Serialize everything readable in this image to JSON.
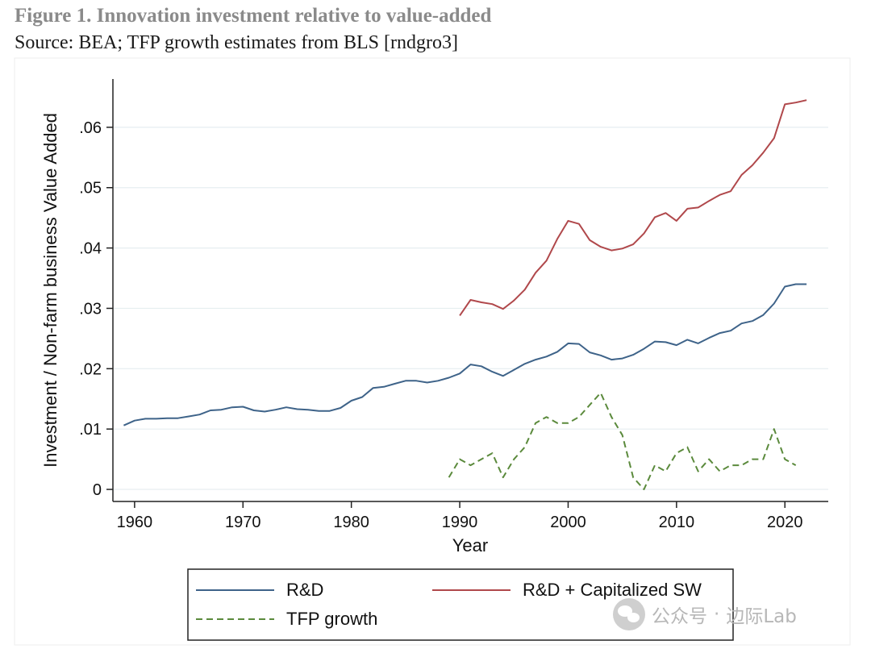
{
  "figure": {
    "title": "Figure 1. Innovation investment relative to value-added",
    "source": "Source: BEA; TFP growth estimates from BLS [rndgro3]"
  },
  "watermark": {
    "left": "公众号",
    "sep": "·",
    "right": "边际Lab",
    "icon": "wechat-icon"
  },
  "chart_data": {
    "type": "line",
    "title": "",
    "xlabel": "Year",
    "ylabel": "Investment / Non-farm business Value Added",
    "xlim": [
      1958,
      2024
    ],
    "ylim": [
      -0.002,
      0.068
    ],
    "xticks": [
      1960,
      1970,
      1980,
      1990,
      2000,
      2010,
      2020
    ],
    "xtick_labels": [
      "1960",
      "1970",
      "1980",
      "1990",
      "2000",
      "2010",
      "2020"
    ],
    "yticks": [
      0,
      0.01,
      0.02,
      0.03,
      0.04,
      0.05,
      0.06
    ],
    "ytick_labels": [
      "0",
      ".01",
      ".02",
      ".03",
      ".04",
      ".05",
      ".06"
    ],
    "grid": true,
    "legend_position": "bottom",
    "colors": {
      "rd": "#3e6389",
      "rdsw": "#b0484b",
      "tfp": "#5b8a3c",
      "grid": "#e6eef0"
    },
    "series": [
      {
        "key": "rd",
        "name": "R&D",
        "style": "solid",
        "x": [
          1959,
          1960,
          1961,
          1962,
          1963,
          1964,
          1965,
          1966,
          1967,
          1968,
          1969,
          1970,
          1971,
          1972,
          1973,
          1974,
          1975,
          1976,
          1977,
          1978,
          1979,
          1980,
          1981,
          1982,
          1983,
          1984,
          1985,
          1986,
          1987,
          1988,
          1989,
          1990,
          1991,
          1992,
          1993,
          1994,
          1995,
          1996,
          1997,
          1998,
          1999,
          2000,
          2001,
          2002,
          2003,
          2004,
          2005,
          2006,
          2007,
          2008,
          2009,
          2010,
          2011,
          2012,
          2013,
          2014,
          2015,
          2016,
          2017,
          2018,
          2019,
          2020,
          2021,
          2022
        ],
        "values": [
          0.0106,
          0.0114,
          0.0117,
          0.0117,
          0.0118,
          0.0118,
          0.0121,
          0.0124,
          0.0131,
          0.0132,
          0.0136,
          0.0137,
          0.0131,
          0.0129,
          0.0132,
          0.0136,
          0.0133,
          0.0132,
          0.013,
          0.013,
          0.0135,
          0.0147,
          0.0153,
          0.0168,
          0.017,
          0.0175,
          0.018,
          0.018,
          0.0177,
          0.018,
          0.0185,
          0.0192,
          0.0207,
          0.0204,
          0.0195,
          0.0188,
          0.0198,
          0.0208,
          0.0215,
          0.022,
          0.0228,
          0.0242,
          0.0241,
          0.0227,
          0.0222,
          0.0215,
          0.0217,
          0.0223,
          0.0233,
          0.0245,
          0.0244,
          0.0239,
          0.0248,
          0.0242,
          0.0251,
          0.0259,
          0.0263,
          0.0275,
          0.0279,
          0.0289,
          0.0308,
          0.0336,
          0.034,
          0.034
        ]
      },
      {
        "key": "rdsw",
        "name": "R&D + Capitalized SW",
        "style": "solid",
        "x": [
          1990,
          1991,
          1992,
          1993,
          1994,
          1995,
          1996,
          1997,
          1998,
          1999,
          2000,
          2001,
          2002,
          2003,
          2004,
          2005,
          2006,
          2007,
          2008,
          2009,
          2010,
          2011,
          2012,
          2013,
          2014,
          2015,
          2016,
          2017,
          2018,
          2019,
          2020,
          2021,
          2022
        ],
        "values": [
          0.0288,
          0.0314,
          0.031,
          0.0307,
          0.0299,
          0.0313,
          0.0331,
          0.0359,
          0.0379,
          0.0415,
          0.0445,
          0.044,
          0.0413,
          0.0402,
          0.0396,
          0.0399,
          0.0406,
          0.0424,
          0.0451,
          0.0458,
          0.0445,
          0.0465,
          0.0467,
          0.0478,
          0.0488,
          0.0494,
          0.0521,
          0.0537,
          0.0558,
          0.0582,
          0.0638,
          0.0641,
          0.0645
        ]
      },
      {
        "key": "tfp",
        "name": "TFP growth",
        "style": "dashed",
        "x": [
          1989,
          1990,
          1991,
          1992,
          1993,
          1994,
          1995,
          1996,
          1997,
          1998,
          1999,
          2000,
          2001,
          2002,
          2003,
          2004,
          2005,
          2006,
          2007,
          2008,
          2009,
          2010,
          2011,
          2012,
          2013,
          2014,
          2015,
          2016,
          2017,
          2018,
          2019,
          2020,
          2021
        ],
        "values": [
          0.002,
          0.005,
          0.004,
          0.005,
          0.006,
          0.002,
          0.005,
          0.007,
          0.011,
          0.012,
          0.011,
          0.011,
          0.012,
          0.014,
          0.016,
          0.012,
          0.009,
          0.002,
          0.0,
          0.004,
          0.003,
          0.006,
          0.007,
          0.003,
          0.005,
          0.003,
          0.004,
          0.004,
          0.005,
          0.005,
          0.01,
          0.005,
          0.004
        ]
      }
    ]
  }
}
